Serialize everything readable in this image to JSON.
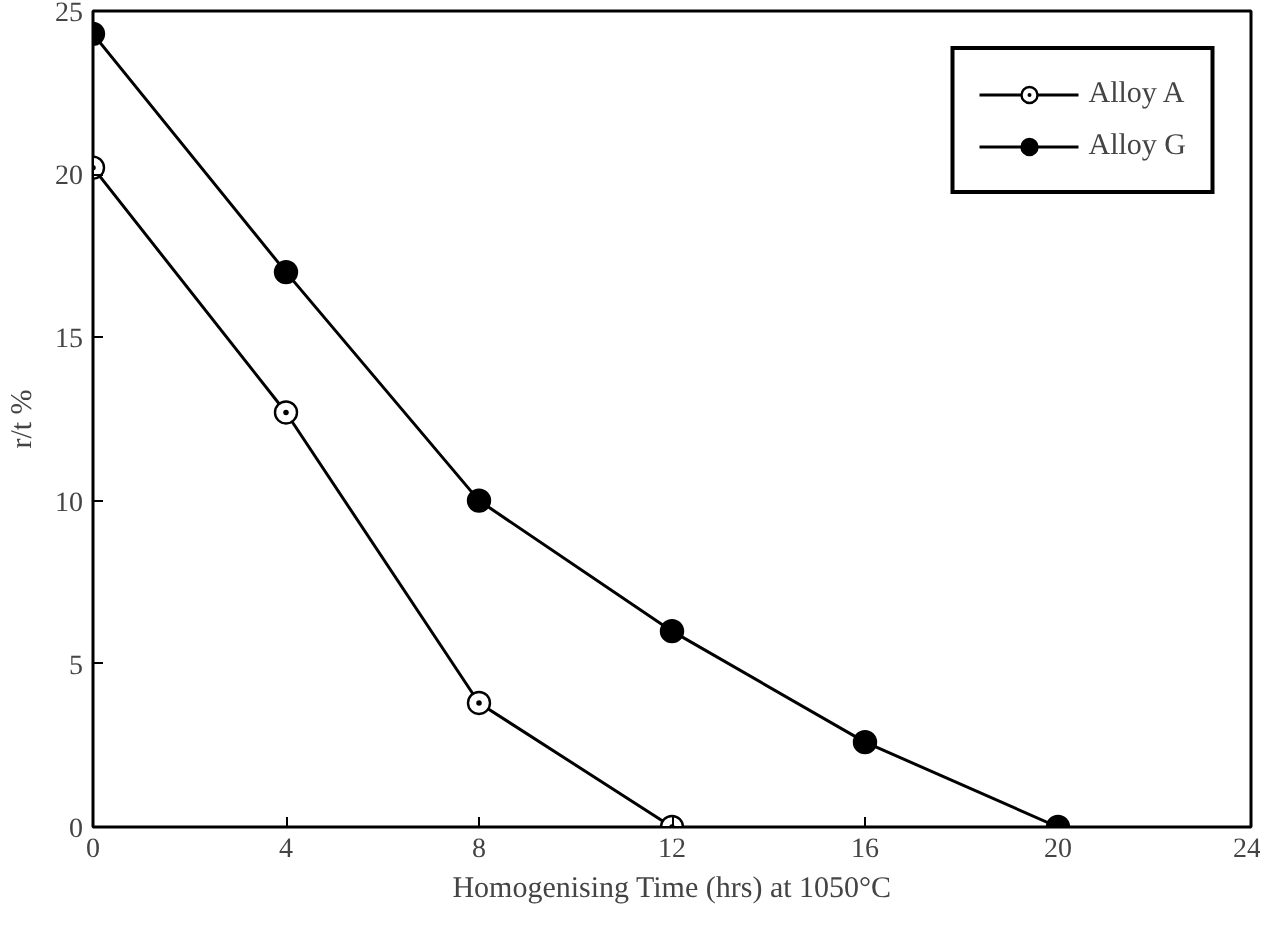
{
  "chart_data": {
    "type": "line",
    "xlabel": "Homogenising Time (hrs) at 1050°C",
    "ylabel": "r/t %",
    "xlim": [
      0,
      24
    ],
    "xticks": [
      0,
      4,
      8,
      12,
      16,
      20,
      24
    ],
    "ylim": [
      0,
      25
    ],
    "yticks": [
      0,
      5,
      10,
      15,
      20,
      25
    ],
    "grid": false,
    "legend": "top right",
    "line_style": "solid",
    "series": [
      {
        "name": "Alloy A",
        "color": "#000000",
        "marker": "circle_dot",
        "x": [
          0,
          4,
          8,
          12
        ],
        "values": [
          20.2,
          12.7,
          3.8,
          0
        ]
      },
      {
        "name": "Alloy G",
        "color": "#000000",
        "marker": "circle",
        "x": [
          0,
          4,
          8,
          12,
          16,
          20
        ],
        "values": [
          24.3,
          17.0,
          10.0,
          6.0,
          2.6,
          0
        ]
      }
    ]
  }
}
